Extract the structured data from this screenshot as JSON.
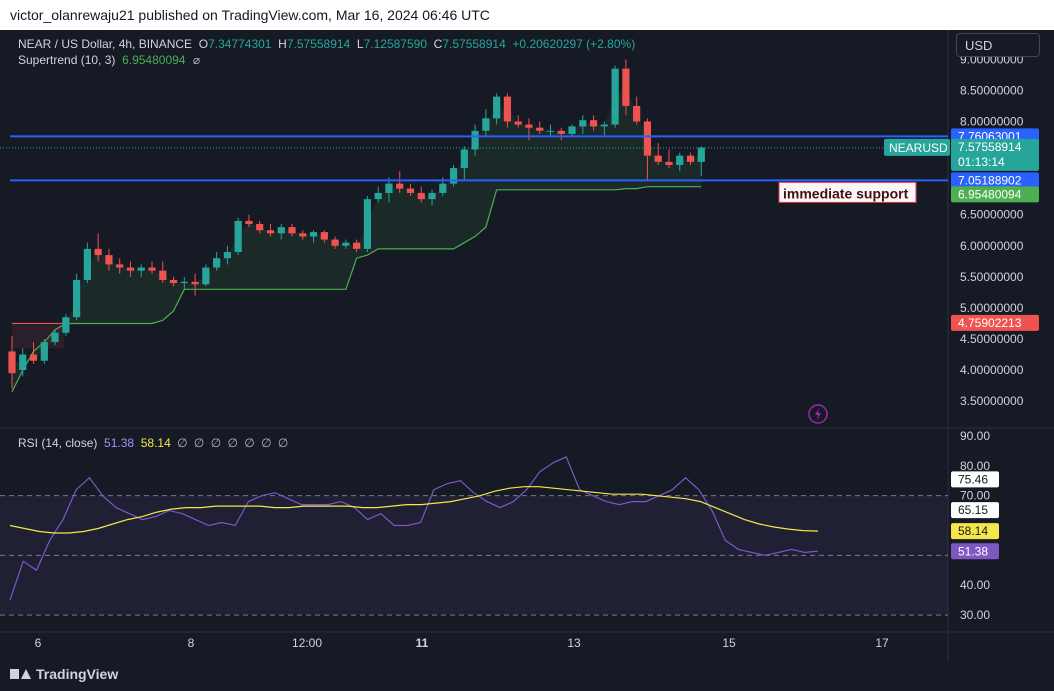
{
  "header": {
    "text": "victor_olanrewaju21 published on TradingView.com, Mar 16, 2024 06:46 UTC"
  },
  "footer": {
    "brand": "TradingView"
  },
  "legend": {
    "symbol": "NEAR / US Dollar, 4h, BINANCE",
    "open_label": "O",
    "open": "7.34774301",
    "high_label": "H",
    "high": "7.57558914",
    "low_label": "L",
    "low": "7.12587590",
    "close_label": "C",
    "close": "7.57558914",
    "change": "+0.20620297 (+2.80%)",
    "indicator": "Supertrend (10, 3)",
    "indicator_value": "6.95480094",
    "eye_icon": "eye-icon"
  },
  "currency_button": {
    "label": "USD"
  },
  "rsi_legend": {
    "name": "RSI (14, close)",
    "rsi_value": "51.38",
    "ma_value": "58.14",
    "na_values": [
      "∅",
      "∅",
      "∅",
      "∅",
      "∅",
      "∅",
      "∅"
    ]
  },
  "colors": {
    "background": "#161a25",
    "up": "#26a69a",
    "down": "#ef5350",
    "supertrend": "#4caf50",
    "level_line": "#2962ff",
    "rsi": "#7e57c2",
    "rsi_ma": "#f5e74a"
  },
  "annotation": {
    "text": "immediate support"
  },
  "chart_data": [
    {
      "type": "candlestick",
      "symbol": "NEARUSD",
      "ylim": [
        3.1,
        9.15
      ],
      "x_ticks": [
        "6",
        "8",
        "12:00",
        "11",
        "13",
        "15",
        "17"
      ],
      "y_ticks": [
        "9.00000000",
        "8.50000000",
        "8.00000000",
        "6.50000000",
        "6.00000000",
        "5.50000000",
        "5.00000000",
        "4.50000000",
        "4.00000000",
        "3.50000000"
      ],
      "candles": [
        [
          4.3,
          4.55,
          3.7,
          3.95
        ],
        [
          4.0,
          4.35,
          3.9,
          4.25
        ],
        [
          4.25,
          4.45,
          4.1,
          4.15
        ],
        [
          4.15,
          4.5,
          4.1,
          4.45
        ],
        [
          4.45,
          4.65,
          4.4,
          4.6
        ],
        [
          4.6,
          4.9,
          4.55,
          4.85
        ],
        [
          4.85,
          5.55,
          4.8,
          5.45
        ],
        [
          5.45,
          6.05,
          5.4,
          5.95
        ],
        [
          5.95,
          6.2,
          5.75,
          5.85
        ],
        [
          5.85,
          5.95,
          5.6,
          5.7
        ],
        [
          5.7,
          5.8,
          5.55,
          5.65
        ],
        [
          5.65,
          5.75,
          5.5,
          5.6
        ],
        [
          5.6,
          5.7,
          5.5,
          5.65
        ],
        [
          5.65,
          5.75,
          5.55,
          5.6
        ],
        [
          5.6,
          5.75,
          5.4,
          5.45
        ],
        [
          5.45,
          5.5,
          5.35,
          5.4
        ],
        [
          5.4,
          5.5,
          5.3,
          5.42
        ],
        [
          5.42,
          5.55,
          5.2,
          5.38
        ],
        [
          5.38,
          5.7,
          5.35,
          5.65
        ],
        [
          5.65,
          5.9,
          5.6,
          5.8
        ],
        [
          5.8,
          6.0,
          5.7,
          5.9
        ],
        [
          5.9,
          6.45,
          5.85,
          6.4
        ],
        [
          6.4,
          6.5,
          6.3,
          6.35
        ],
        [
          6.35,
          6.4,
          6.2,
          6.25
        ],
        [
          6.25,
          6.35,
          6.15,
          6.2
        ],
        [
          6.2,
          6.35,
          6.1,
          6.3
        ],
        [
          6.3,
          6.35,
          6.15,
          6.2
        ],
        [
          6.2,
          6.25,
          6.1,
          6.15
        ],
        [
          6.15,
          6.25,
          6.05,
          6.22
        ],
        [
          6.22,
          6.25,
          6.05,
          6.1
        ],
        [
          6.1,
          6.15,
          5.95,
          6.0
        ],
        [
          6.0,
          6.1,
          5.95,
          6.05
        ],
        [
          6.05,
          6.1,
          5.9,
          5.95
        ],
        [
          5.95,
          6.8,
          5.9,
          6.75
        ],
        [
          6.75,
          6.95,
          6.7,
          6.85
        ],
        [
          6.85,
          7.1,
          6.7,
          7.0
        ],
        [
          7.0,
          7.2,
          6.85,
          6.92
        ],
        [
          6.92,
          7.0,
          6.8,
          6.85
        ],
        [
          6.85,
          6.95,
          6.7,
          6.75
        ],
        [
          6.75,
          6.9,
          6.65,
          6.85
        ],
        [
          6.85,
          7.1,
          6.8,
          7.0
        ],
        [
          7.0,
          7.3,
          6.95,
          7.25
        ],
        [
          7.25,
          7.6,
          7.05,
          7.55
        ],
        [
          7.55,
          7.95,
          7.45,
          7.85
        ],
        [
          7.85,
          8.2,
          7.75,
          8.05
        ],
        [
          8.05,
          8.45,
          7.95,
          8.4
        ],
        [
          8.4,
          8.45,
          7.9,
          8.0
        ],
        [
          8.0,
          8.1,
          7.9,
          7.95
        ],
        [
          7.95,
          8.05,
          7.7,
          7.9
        ],
        [
          7.9,
          8.0,
          7.8,
          7.85
        ],
        [
          7.85,
          7.95,
          7.75,
          7.85
        ],
        [
          7.85,
          7.9,
          7.7,
          7.8
        ],
        [
          7.8,
          7.95,
          7.75,
          7.92
        ],
        [
          7.92,
          8.1,
          7.8,
          8.02
        ],
        [
          8.02,
          8.1,
          7.85,
          7.92
        ],
        [
          7.92,
          8.0,
          7.78,
          7.95
        ],
        [
          7.95,
          8.9,
          7.9,
          8.85
        ],
        [
          8.85,
          9.0,
          8.1,
          8.25
        ],
        [
          8.25,
          8.4,
          7.95,
          8.0
        ],
        [
          8.0,
          8.05,
          7.05,
          7.45
        ],
        [
          7.45,
          7.65,
          7.3,
          7.35
        ],
        [
          7.35,
          7.55,
          7.25,
          7.3
        ],
        [
          7.3,
          7.5,
          7.2,
          7.45
        ],
        [
          7.45,
          7.5,
          7.3,
          7.35
        ],
        [
          7.35,
          7.6,
          7.12,
          7.58
        ]
      ],
      "supertrend": [
        3.65,
        4.0,
        4.3,
        4.45,
        4.65,
        4.75,
        4.75,
        4.75,
        4.75,
        4.75,
        4.75,
        4.75,
        4.75,
        4.75,
        4.8,
        4.95,
        5.3,
        5.3,
        5.3,
        5.3,
        5.3,
        5.3,
        5.3,
        5.3,
        5.3,
        5.3,
        5.3,
        5.3,
        5.3,
        5.3,
        5.3,
        5.3,
        5.8,
        5.85,
        5.95,
        5.95,
        5.95,
        5.95,
        5.95,
        5.95,
        5.95,
        5.95,
        6.05,
        6.15,
        6.3,
        6.9,
        6.9,
        6.9,
        6.9,
        6.9,
        6.9,
        6.9,
        6.9,
        6.9,
        6.9,
        6.9,
        6.9,
        6.92,
        6.92,
        6.95,
        6.95,
        6.95,
        6.95,
        6.95,
        6.95
      ],
      "lines": {
        "resistance": "7.76063001",
        "support": "7.05188902"
      },
      "price_labels": {
        "symbol_tag": "NEARUSD",
        "last": "7.57558914",
        "countdown": "01:13:14",
        "supertrend": "6.95480094",
        "earlier": "4.75902213"
      }
    },
    {
      "type": "line",
      "name": "RSI (14, close)",
      "ylim": [
        25,
        92
      ],
      "y_ticks": [
        "90.00",
        "80.00",
        "70.00",
        "40.00",
        "30.00"
      ],
      "bands": [
        30,
        70,
        50
      ],
      "labels": {
        "high": "75.46",
        "low": "65.15",
        "ma": "58.14",
        "rsi": "51.38"
      },
      "series": [
        {
          "name": "RSI",
          "values": [
            35.0,
            48.0,
            45.0,
            55.0,
            62.0,
            72.0,
            76.0,
            70.0,
            66.0,
            64.0,
            62.0,
            63.0,
            65.0,
            64.0,
            62.0,
            60.0,
            61.0,
            60.0,
            68.0,
            70.0,
            71.0,
            69.0,
            67.0,
            67.0,
            67.0,
            68.0,
            66.0,
            62.0,
            64.0,
            60.0,
            60.0,
            61.0,
            72.0,
            74.0,
            75.0,
            71.0,
            68.0,
            66.0,
            68.0,
            72.0,
            78.0,
            81.0,
            83.0,
            72.0,
            70.0,
            68.0,
            67.0,
            68.0,
            68.0,
            70.0,
            72.0,
            76.0,
            72.0,
            65.0,
            55.0,
            52.0,
            51.0,
            50.0,
            51.0,
            52.0,
            51.0,
            51.4
          ]
        },
        {
          "name": "RSI MA",
          "values": [
            60.0,
            59.0,
            58.0,
            57.5,
            57.5,
            58.0,
            59.0,
            60.5,
            62.0,
            63.0,
            64.5,
            65.5,
            66.0,
            66.0,
            66.5,
            66.5,
            66.5,
            66.5,
            66.0,
            66.0,
            66.5,
            66.5,
            66.5,
            66.5,
            66.0,
            66.0,
            66.5,
            67.0,
            67.0,
            67.5,
            68.0,
            69.0,
            70.0,
            71.5,
            72.5,
            73.0,
            73.0,
            72.5,
            72.0,
            71.5,
            71.0,
            70.5,
            70.5,
            70.5,
            70.0,
            69.5,
            69.0,
            68.0,
            66.0,
            64.0,
            62.0,
            60.5,
            59.5,
            58.8,
            58.3,
            58.14
          ]
        }
      ]
    }
  ]
}
